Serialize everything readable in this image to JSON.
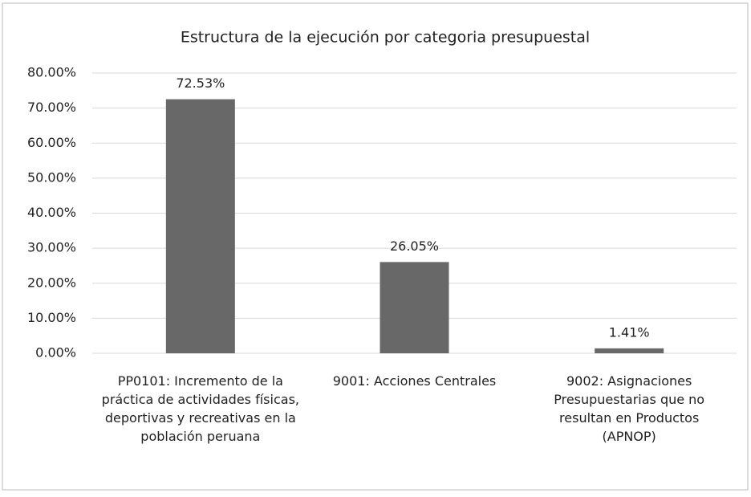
{
  "chart_data": {
    "type": "bar",
    "title": "Estructura de la ejecución por categoria presupuestal",
    "categories": [
      "PP0101: Incremento de la práctica de actividades físicas, deportivas y recreativas en la población peruana",
      "9001: Acciones Centrales",
      "9002: Asignaciones Presupuestarias que no resultan en Productos (APNOP)"
    ],
    "values": [
      72.53,
      26.05,
      1.41
    ],
    "value_labels": [
      "72.53%",
      "26.05%",
      "1.41%"
    ],
    "color": "#686868",
    "ylim": [
      0,
      80
    ],
    "yticks": [
      {
        "value": 0,
        "label": "0.00%"
      },
      {
        "value": 10,
        "label": "10.00%"
      },
      {
        "value": 20,
        "label": "20.00%"
      },
      {
        "value": 30,
        "label": "30.00%"
      },
      {
        "value": 40,
        "label": "40.00%"
      },
      {
        "value": 50,
        "label": "50.00%"
      },
      {
        "value": 60,
        "label": "60.00%"
      },
      {
        "value": 70,
        "label": "70.00%"
      },
      {
        "value": 80,
        "label": "80.00%"
      }
    ],
    "grid": true
  }
}
